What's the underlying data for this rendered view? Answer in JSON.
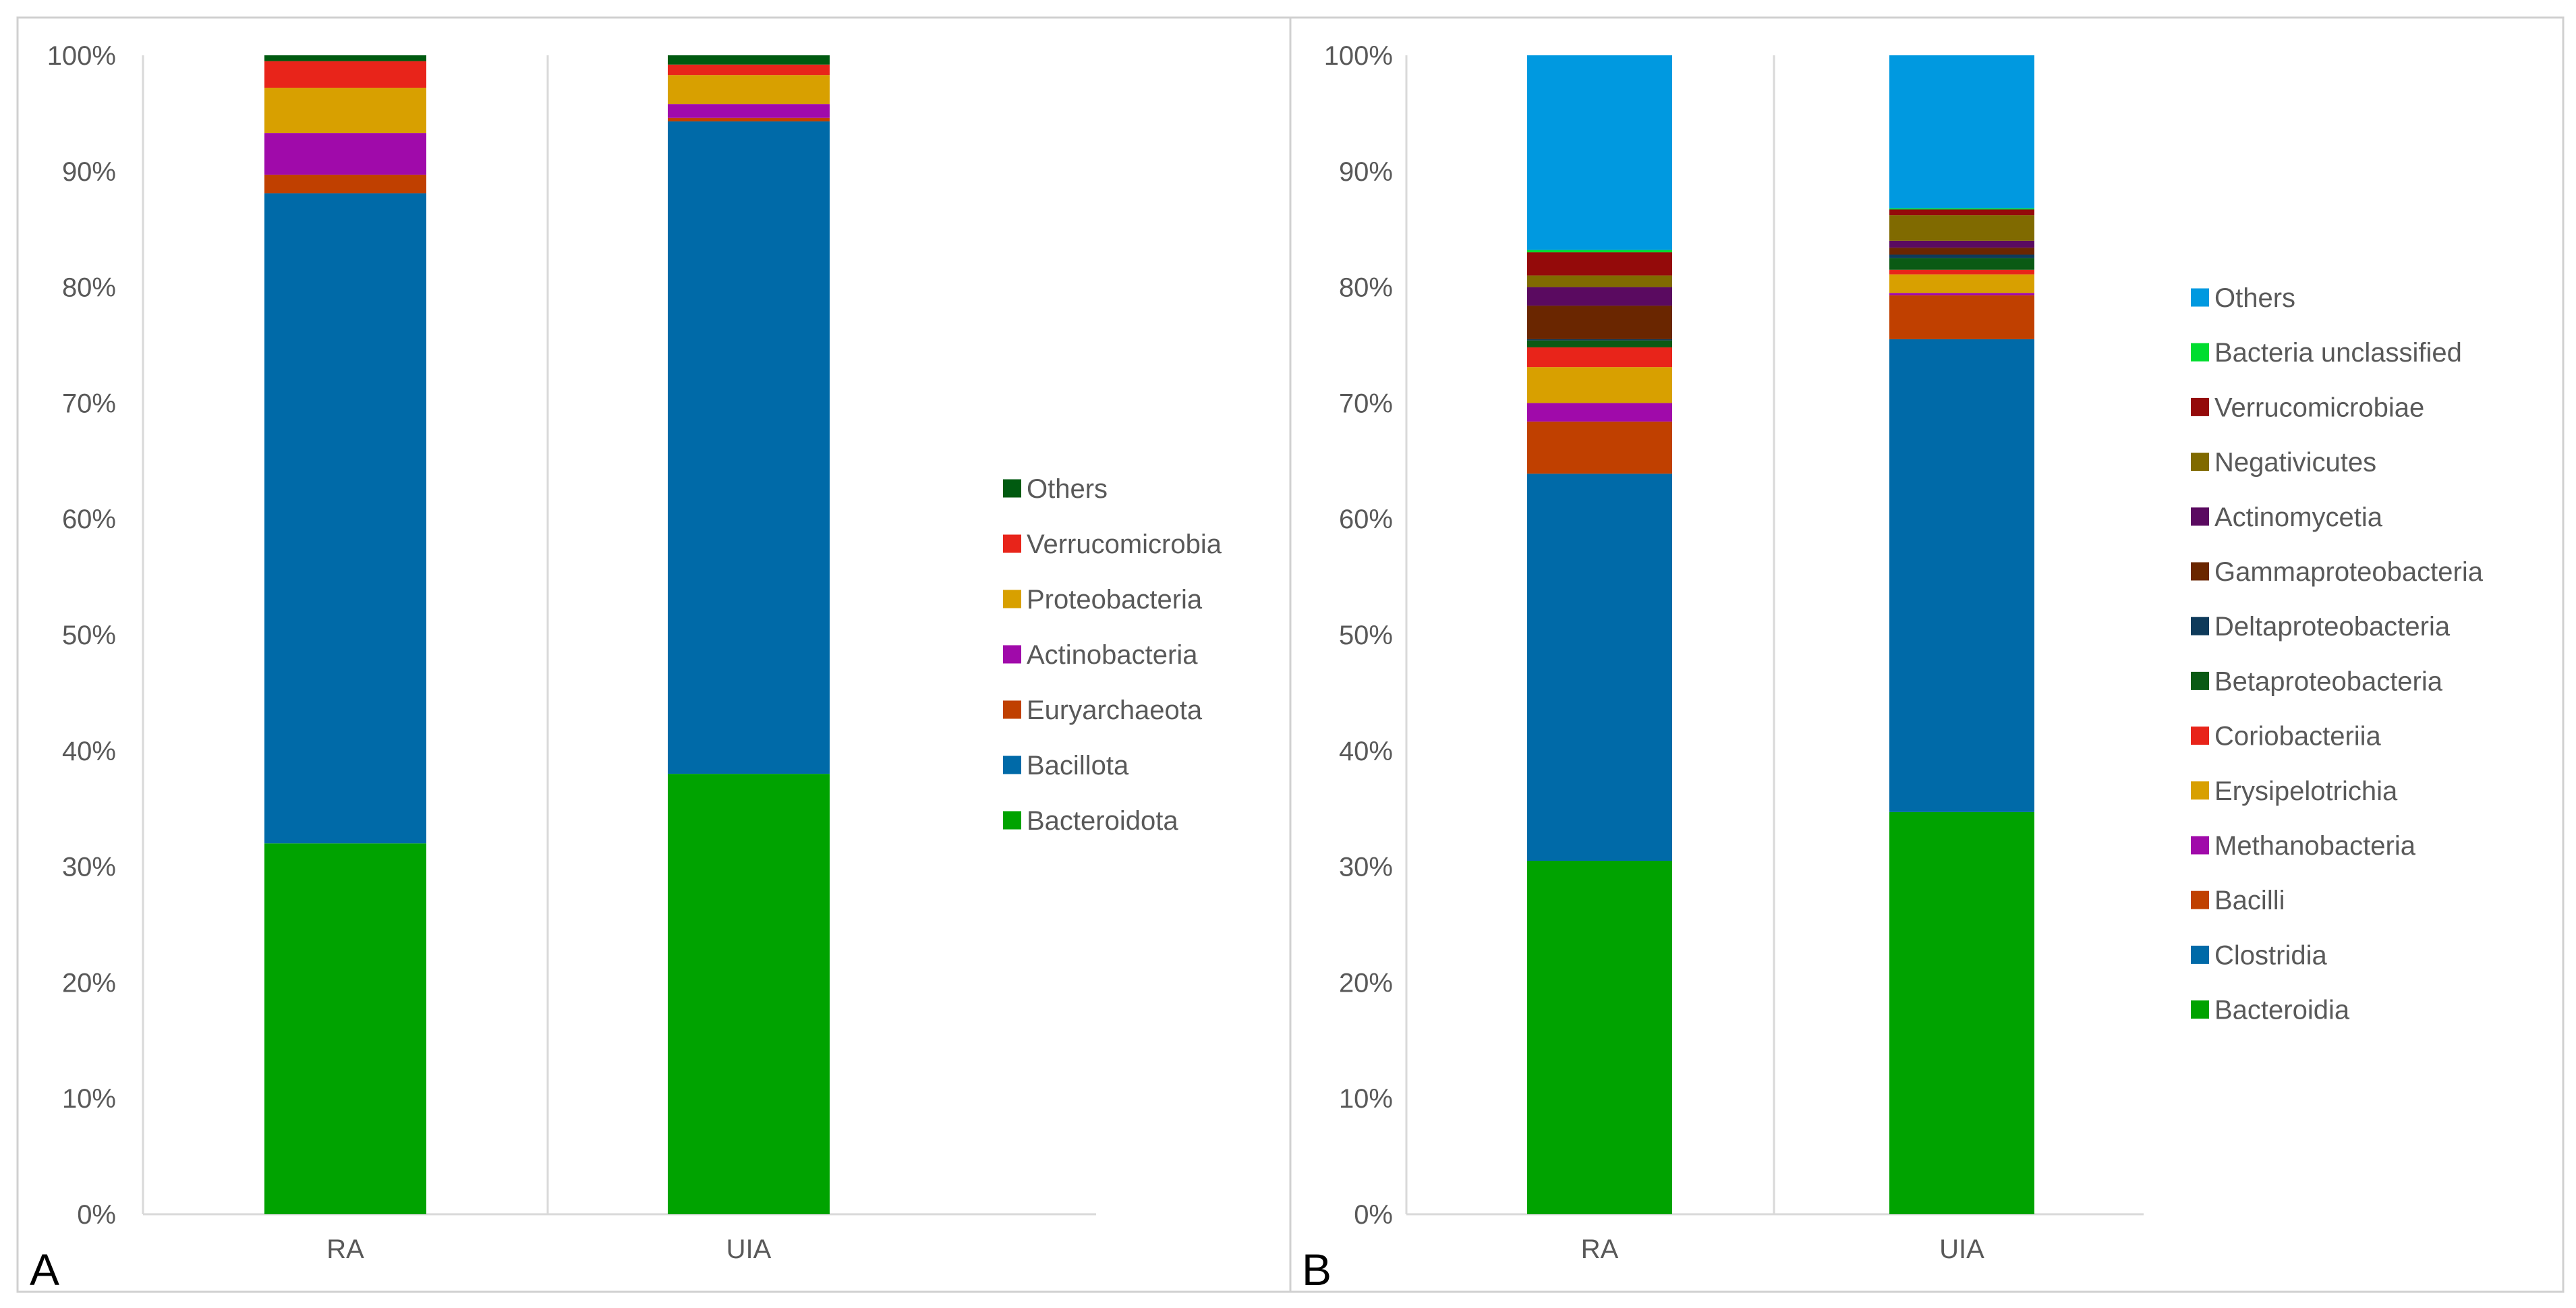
{
  "chart_data": [
    {
      "type": "bar",
      "stacked": true,
      "panel_label": "A",
      "categories": [
        "RA",
        "UIA"
      ],
      "ylim": [
        0,
        100
      ],
      "ytick_labels": [
        "0%",
        "10%",
        "20%",
        "30%",
        "40%",
        "50%",
        "60%",
        "70%",
        "80%",
        "90%",
        "100%"
      ],
      "legend_position": "right",
      "series": [
        {
          "name": "Bacteroidota",
          "color": "#00a300",
          "values": [
            32.0,
            38.0
          ]
        },
        {
          "name": "Bacillota",
          "color": "#006aa8",
          "values": [
            56.1,
            56.3
          ]
        },
        {
          "name": "Euryarchaeota",
          "color": "#c04000",
          "values": [
            1.6,
            0.3
          ]
        },
        {
          "name": "Actinobacteria",
          "color": "#a00aaa",
          "values": [
            3.6,
            1.2
          ]
        },
        {
          "name": "Proteobacteria",
          "color": "#d8a000",
          "values": [
            3.9,
            2.5
          ]
        },
        {
          "name": "Verrucomicrobia",
          "color": "#e8241a",
          "values": [
            2.3,
            0.9
          ]
        },
        {
          "name": "Others",
          "color": "#005a10",
          "values": [
            0.5,
            0.8
          ]
        }
      ]
    },
    {
      "type": "bar",
      "stacked": true,
      "panel_label": "B",
      "categories": [
        "RA",
        "UIA"
      ],
      "ylim": [
        0,
        100
      ],
      "ytick_labels": [
        "0%",
        "10%",
        "20%",
        "30%",
        "40%",
        "50%",
        "60%",
        "70%",
        "80%",
        "90%",
        "100%"
      ],
      "legend_position": "right",
      "series": [
        {
          "name": "Bacteroidia",
          "color": "#00a300",
          "values": [
            30.5,
            34.7
          ]
        },
        {
          "name": "Clostridia",
          "color": "#006aa8",
          "values": [
            33.4,
            40.8
          ]
        },
        {
          "name": "Bacilli",
          "color": "#c04000",
          "values": [
            4.5,
            3.8
          ]
        },
        {
          "name": "Methanobacteria",
          "color": "#a00aaa",
          "values": [
            1.6,
            0.2
          ]
        },
        {
          "name": "Erysipelotrichia",
          "color": "#d8a000",
          "values": [
            3.1,
            1.6
          ]
        },
        {
          "name": "Coriobacteriia",
          "color": "#e8241a",
          "values": [
            1.7,
            0.4
          ]
        },
        {
          "name": "Betaproteobacteria",
          "color": "#0a5a14",
          "values": [
            0.6,
            1.0
          ]
        },
        {
          "name": "Deltaproteobacteria",
          "color": "#0e3a5a",
          "values": [
            0.1,
            0.3
          ]
        },
        {
          "name": "Gammaproteobacteria",
          "color": "#6a2600",
          "values": [
            2.9,
            0.6
          ]
        },
        {
          "name": "Actinomycetia",
          "color": "#5a0a60",
          "values": [
            1.6,
            0.6
          ]
        },
        {
          "name": "Negativicutes",
          "color": "#806a00",
          "values": [
            1.0,
            2.2
          ]
        },
        {
          "name": "Verrucomicrobiae",
          "color": "#940a0a",
          "values": [
            2.0,
            0.5
          ]
        },
        {
          "name": "Bacteria unclassified",
          "color": "#00dd30",
          "values": [
            0.2,
            0.1
          ]
        },
        {
          "name": "Others",
          "color": "#0099e0",
          "values": [
            16.8,
            13.2
          ]
        }
      ]
    }
  ]
}
